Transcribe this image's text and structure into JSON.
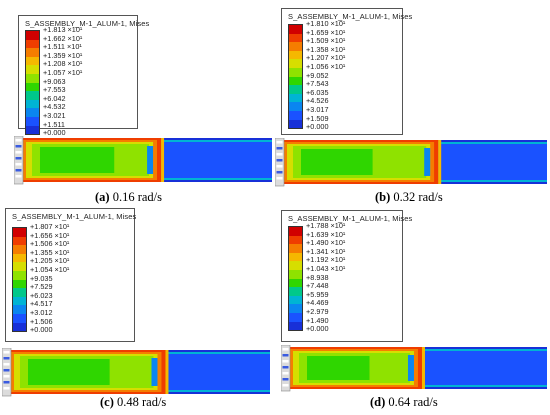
{
  "colors": [
    "#d10000",
    "#ef3d00",
    "#f57d00",
    "#f5b800",
    "#d6de00",
    "#8fe200",
    "#2fd600",
    "#00c88a",
    "#00b4d4",
    "#0a86f0",
    "#1a52ff",
    "#1830d8"
  ],
  "panels": [
    {
      "title": "S_ASSEMBLY_M-1_ALUM-1, Mises",
      "levels": [
        "+1.813 ×10¹",
        "+1.662 ×10¹",
        "+1.511 ×10¹",
        "+1.359 ×10¹",
        "+1.208 ×10¹",
        "+1.057 ×10¹",
        "+9.063",
        "+7.553",
        "+6.042",
        "+4.532",
        "+3.021",
        "+1.511",
        "+0.000"
      ],
      "caption_letter": "(a)",
      "caption_text": " 0.16 rad/s"
    },
    {
      "title": "S_ASSEMBLY_M-1_ALUM-1, Mises",
      "levels": [
        "+1.810 ×10¹",
        "+1.659 ×10¹",
        "+1.509 ×10¹",
        "+1.358 ×10¹",
        "+1.207 ×10¹",
        "+1.056 ×10¹",
        "+9.052",
        "+7.543",
        "+6.035",
        "+4.526",
        "+3.017",
        "+1.509",
        "+0.000"
      ],
      "caption_letter": "(b)",
      "caption_text": " 0.32 rad/s"
    },
    {
      "title": "S_ASSEMBLY_M-1_ALUM-1, Mises",
      "levels": [
        "+1.807 ×10¹",
        "+1.656 ×10¹",
        "+1.506 ×10¹",
        "+1.355 ×10¹",
        "+1.205 ×10¹",
        "+1.054 ×10¹",
        "+9.035",
        "+7.529",
        "+6.023",
        "+4.517",
        "+3.012",
        "+1.506",
        "+0.000"
      ],
      "caption_letter": "(c)",
      "caption_text": " 0.48 rad/s"
    },
    {
      "title": "S_ASSEMBLY_M-1_ALUM-1, Mises",
      "levels": [
        "+1.788 ×10¹",
        "+1.639 ×10¹",
        "+1.490 ×10¹",
        "+1.341 ×10¹",
        "+1.192 ×10¹",
        "+1.043 ×10¹",
        "+8.938",
        "+7.448",
        "+5.959",
        "+4.469",
        "+2.979",
        "+1.490",
        "+0.000"
      ],
      "caption_letter": "(d)",
      "caption_text": " 0.64 rad/s"
    }
  ]
}
